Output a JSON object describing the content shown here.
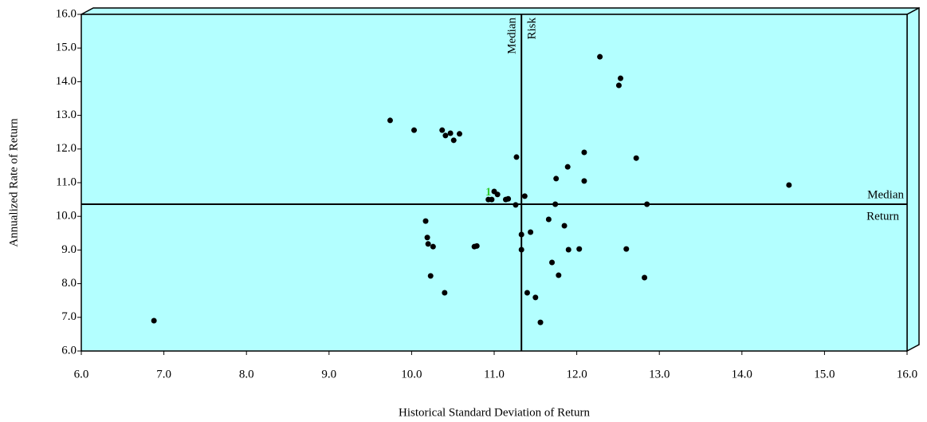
{
  "chart_data": {
    "type": "scatter",
    "x_label": "Historical Standard Deviation of Return",
    "y_label": "Annualized Rate of Return",
    "xlim": [
      6,
      16
    ],
    "ylim": [
      6,
      16
    ],
    "xticks": [
      {
        "value": 6,
        "label": "6.0"
      },
      {
        "value": 7,
        "label": "7.0"
      },
      {
        "value": 8,
        "label": "8.0"
      },
      {
        "value": 9,
        "label": "9.0"
      },
      {
        "value": 10,
        "label": "10.0"
      },
      {
        "value": 11,
        "label": "11.0"
      },
      {
        "value": 12,
        "label": "12.0"
      },
      {
        "value": 13,
        "label": "13.0"
      },
      {
        "value": 14,
        "label": "14.0"
      },
      {
        "value": 15,
        "label": "15.0"
      },
      {
        "value": 16,
        "label": "16.0"
      }
    ],
    "yticks": [
      {
        "value": 6,
        "label": "6.0"
      },
      {
        "value": 7,
        "label": "7.0"
      },
      {
        "value": 8,
        "label": "8.0"
      },
      {
        "value": 9,
        "label": "9.0"
      },
      {
        "value": 10,
        "label": "10.0"
      },
      {
        "value": 11,
        "label": "11.0"
      },
      {
        "value": 12,
        "label": "12.0"
      },
      {
        "value": 13,
        "label": "13.0"
      },
      {
        "value": 14,
        "label": "14.0"
      },
      {
        "value": 15,
        "label": "15.0"
      },
      {
        "value": 16,
        "label": "16.0"
      }
    ],
    "background": "#b3ffff",
    "color": "#000000",
    "x": [
      6.88,
      9.74,
      10.03,
      10.37,
      10.41,
      10.47,
      10.51,
      10.58,
      11.27,
      12.28,
      12.53,
      12.51,
      12.09,
      12.72,
      11.89,
      11.75,
      12.09,
      14.57,
      11.37,
      11.74,
      12.85,
      10.93,
      10.97,
      11.0,
      11.04,
      11.14,
      11.17,
      11.26,
      10.17,
      10.19,
      10.2,
      10.26,
      10.23,
      10.4,
      10.76,
      10.79,
      11.66,
      11.85,
      11.44,
      11.33,
      11.33,
      11.9,
      12.03,
      12.6,
      11.7,
      11.78,
      12.82,
      11.4,
      11.5,
      11.56
    ],
    "values": [
      6.9,
      12.85,
      12.56,
      12.56,
      12.4,
      12.47,
      12.26,
      12.45,
      11.76,
      14.74,
      14.1,
      13.89,
      11.9,
      11.73,
      11.47,
      11.12,
      11.05,
      10.93,
      10.6,
      10.36,
      10.36,
      10.5,
      10.5,
      10.74,
      10.65,
      10.5,
      10.52,
      10.34,
      9.86,
      9.37,
      9.18,
      9.1,
      8.23,
      7.73,
      9.1,
      9.12,
      9.91,
      9.72,
      9.53,
      9.46,
      9.01,
      9.01,
      9.03,
      9.03,
      8.63,
      8.25,
      8.18,
      7.73,
      7.59,
      6.85
    ],
    "median_risk": 11.33,
    "median_risk_label": [
      "Median",
      "Risk"
    ],
    "median_return": 10.36,
    "median_return_label": [
      "Median",
      "Return"
    ],
    "annotation": {
      "text": "1",
      "x": 10.93,
      "y": 10.7,
      "color": "#33cc33"
    }
  }
}
